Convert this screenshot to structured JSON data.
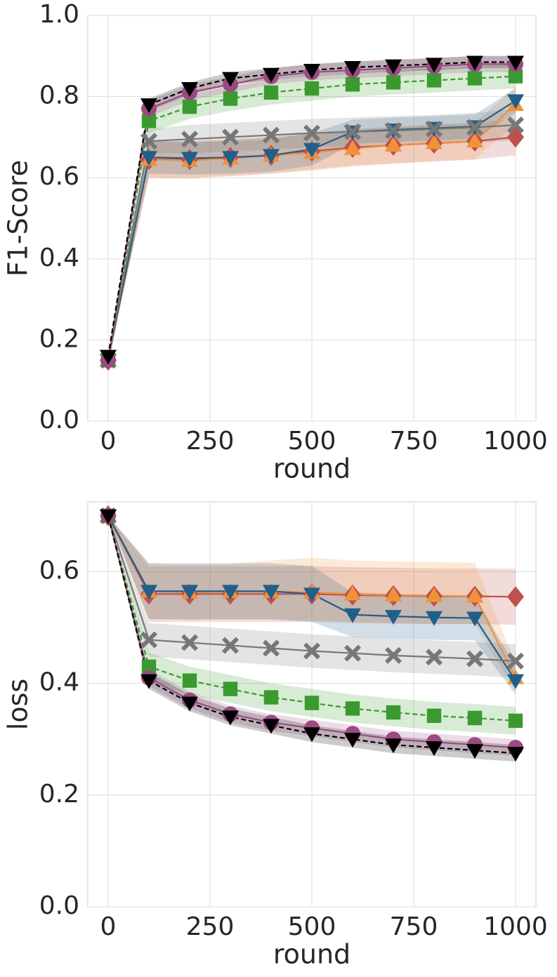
{
  "chart_data": [
    {
      "type": "line",
      "xlabel": "round",
      "ylabel": "F1-Score",
      "x": [
        0,
        100,
        200,
        300,
        400,
        500,
        600,
        700,
        800,
        900,
        1000
      ],
      "xlim": [
        -50,
        1050
      ],
      "ylim": [
        0,
        1.0
      ],
      "xticks": [
        0,
        250,
        500,
        750,
        1000
      ],
      "yticks": [
        {
          "value": 0,
          "label": "0.0"
        },
        0.2,
        0.4,
        0.6,
        0.8,
        {
          "value": 1.0,
          "label": "1.0"
        }
      ],
      "grid": true,
      "series": [
        {
          "color": "#c0504d",
          "marker": "D",
          "linestyle": "solid",
          "values": [
            0.15,
            0.645,
            0.645,
            0.65,
            0.655,
            0.665,
            0.675,
            0.68,
            0.685,
            0.69,
            0.7
          ],
          "lower": [
            0.15,
            0.6,
            0.6,
            0.605,
            0.61,
            0.62,
            0.63,
            0.635,
            0.64,
            0.645,
            0.655
          ],
          "upper": [
            0.15,
            0.69,
            0.69,
            0.695,
            0.7,
            0.71,
            0.72,
            0.725,
            0.73,
            0.735,
            0.745
          ]
        },
        {
          "color": "#f0923a",
          "marker": "^",
          "linestyle": "solid",
          "values": [
            0.15,
            0.645,
            0.642,
            0.648,
            0.655,
            0.662,
            0.672,
            0.68,
            0.686,
            0.69,
            0.78
          ],
          "lower": [
            0.15,
            0.6,
            0.597,
            0.603,
            0.61,
            0.617,
            0.627,
            0.635,
            0.641,
            0.645,
            0.735
          ],
          "upper": [
            0.15,
            0.69,
            0.687,
            0.693,
            0.7,
            0.707,
            0.717,
            0.725,
            0.731,
            0.735,
            0.825
          ]
        },
        {
          "color": "#1f5f8b",
          "marker": "v",
          "linestyle": "solid",
          "values": [
            0.15,
            0.65,
            0.648,
            0.65,
            0.655,
            0.67,
            0.713,
            0.718,
            0.722,
            0.726,
            0.79
          ],
          "lower": [
            0.15,
            0.61,
            0.608,
            0.61,
            0.615,
            0.63,
            0.683,
            0.688,
            0.692,
            0.696,
            0.76
          ],
          "upper": [
            0.15,
            0.69,
            0.688,
            0.69,
            0.695,
            0.71,
            0.743,
            0.748,
            0.752,
            0.756,
            0.82
          ]
        },
        {
          "color": "#777777",
          "marker": "X",
          "linestyle": "solid",
          "values": [
            0.15,
            0.69,
            0.695,
            0.7,
            0.705,
            0.71,
            0.713,
            0.716,
            0.72,
            0.724,
            0.73
          ],
          "lower": [
            0.15,
            0.66,
            0.66,
            0.665,
            0.67,
            0.675,
            0.678,
            0.68,
            0.685,
            0.688,
            0.69
          ],
          "upper": [
            0.15,
            0.72,
            0.73,
            0.735,
            0.74,
            0.745,
            0.748,
            0.752,
            0.755,
            0.76,
            0.77
          ]
        },
        {
          "color": "#3a9a2f",
          "marker": "s",
          "linestyle": "dashed",
          "values": [
            0.15,
            0.74,
            0.775,
            0.795,
            0.81,
            0.82,
            0.83,
            0.835,
            0.84,
            0.845,
            0.85
          ],
          "lower": [
            0.15,
            0.71,
            0.745,
            0.765,
            0.78,
            0.79,
            0.8,
            0.805,
            0.81,
            0.815,
            0.82
          ],
          "upper": [
            0.15,
            0.77,
            0.805,
            0.825,
            0.84,
            0.85,
            0.86,
            0.865,
            0.87,
            0.875,
            0.88
          ]
        },
        {
          "color": "#9b4a82",
          "marker": "o",
          "linestyle": "solid",
          "values": [
            0.15,
            0.77,
            0.81,
            0.83,
            0.85,
            0.86,
            0.865,
            0.87,
            0.875,
            0.88,
            0.88
          ],
          "lower": [
            0.15,
            0.75,
            0.79,
            0.81,
            0.83,
            0.84,
            0.845,
            0.85,
            0.855,
            0.86,
            0.86
          ],
          "upper": [
            0.15,
            0.79,
            0.83,
            0.85,
            0.87,
            0.88,
            0.885,
            0.89,
            0.895,
            0.9,
            0.9
          ]
        },
        {
          "color": "#000000",
          "marker": "v",
          "linestyle": "dashed",
          "values": [
            0.16,
            0.78,
            0.82,
            0.845,
            0.855,
            0.865,
            0.872,
            0.876,
            0.88,
            0.885,
            0.885
          ],
          "lower": [
            0.16,
            0.765,
            0.805,
            0.83,
            0.84,
            0.85,
            0.857,
            0.861,
            0.865,
            0.87,
            0.87
          ],
          "upper": [
            0.16,
            0.795,
            0.835,
            0.86,
            0.87,
            0.88,
            0.887,
            0.891,
            0.895,
            0.9,
            0.9
          ]
        }
      ]
    },
    {
      "type": "line",
      "xlabel": "round",
      "ylabel": "loss",
      "x": [
        0,
        100,
        200,
        300,
        400,
        500,
        600,
        700,
        800,
        900,
        1000
      ],
      "xlim": [
        -50,
        1050
      ],
      "ylim": [
        0,
        0.725
      ],
      "xticks": [
        0,
        250,
        500,
        750,
        1000
      ],
      "yticks": [
        {
          "value": 0,
          "label": "0.0"
        },
        0.2,
        0.4,
        0.6
      ],
      "grid": true,
      "series": [
        {
          "color": "#c0504d",
          "marker": "D",
          "linestyle": "solid",
          "values": [
            0.7,
            0.56,
            0.56,
            0.56,
            0.56,
            0.56,
            0.558,
            0.557,
            0.556,
            0.556,
            0.555
          ],
          "lower": [
            0.7,
            0.51,
            0.51,
            0.51,
            0.51,
            0.51,
            0.508,
            0.507,
            0.506,
            0.506,
            0.505
          ],
          "upper": [
            0.7,
            0.61,
            0.61,
            0.61,
            0.61,
            0.61,
            0.608,
            0.607,
            0.606,
            0.606,
            0.605
          ]
        },
        {
          "color": "#f0923a",
          "marker": "^",
          "linestyle": "solid",
          "values": [
            0.7,
            0.565,
            0.563,
            0.564,
            0.564,
            0.563,
            0.56,
            0.558,
            0.557,
            0.556,
            0.41
          ],
          "lower": [
            0.7,
            0.515,
            0.513,
            0.514,
            0.514,
            0.513,
            0.51,
            0.508,
            0.507,
            0.506,
            0.385
          ],
          "upper": [
            0.7,
            0.615,
            0.613,
            0.614,
            0.62,
            0.625,
            0.62,
            0.618,
            0.617,
            0.616,
            0.435
          ]
        },
        {
          "color": "#1f5f8b",
          "marker": "v",
          "linestyle": "solid",
          "values": [
            0.7,
            0.565,
            0.565,
            0.565,
            0.565,
            0.56,
            0.523,
            0.52,
            0.518,
            0.517,
            0.405
          ],
          "lower": [
            0.7,
            0.515,
            0.515,
            0.515,
            0.515,
            0.51,
            0.483,
            0.48,
            0.478,
            0.477,
            0.38
          ],
          "upper": [
            0.7,
            0.615,
            0.615,
            0.615,
            0.615,
            0.61,
            0.563,
            0.56,
            0.558,
            0.557,
            0.43
          ]
        },
        {
          "color": "#777777",
          "marker": "X",
          "linestyle": "solid",
          "values": [
            0.7,
            0.478,
            0.473,
            0.468,
            0.463,
            0.458,
            0.454,
            0.45,
            0.447,
            0.444,
            0.44
          ],
          "lower": [
            0.7,
            0.448,
            0.443,
            0.438,
            0.433,
            0.428,
            0.424,
            0.42,
            0.417,
            0.414,
            0.41
          ],
          "upper": [
            0.7,
            0.508,
            0.503,
            0.498,
            0.493,
            0.488,
            0.484,
            0.48,
            0.477,
            0.474,
            0.47
          ]
        },
        {
          "color": "#3a9a2f",
          "marker": "s",
          "linestyle": "dashed",
          "values": [
            0.7,
            0.43,
            0.405,
            0.39,
            0.375,
            0.365,
            0.355,
            0.348,
            0.342,
            0.338,
            0.333
          ],
          "lower": [
            0.7,
            0.405,
            0.38,
            0.365,
            0.35,
            0.34,
            0.33,
            0.323,
            0.317,
            0.313,
            0.308
          ],
          "upper": [
            0.7,
            0.455,
            0.43,
            0.415,
            0.4,
            0.39,
            0.38,
            0.373,
            0.367,
            0.363,
            0.358
          ]
        },
        {
          "color": "#9b4a82",
          "marker": "o",
          "linestyle": "solid",
          "values": [
            0.7,
            0.41,
            0.37,
            0.345,
            0.33,
            0.32,
            0.31,
            0.3,
            0.295,
            0.29,
            0.285
          ],
          "lower": [
            0.7,
            0.395,
            0.355,
            0.33,
            0.315,
            0.305,
            0.295,
            0.285,
            0.28,
            0.275,
            0.27
          ],
          "upper": [
            0.7,
            0.425,
            0.385,
            0.36,
            0.345,
            0.335,
            0.325,
            0.315,
            0.31,
            0.305,
            0.3
          ]
        },
        {
          "color": "#000000",
          "marker": "v",
          "linestyle": "dashed",
          "values": [
            0.7,
            0.405,
            0.365,
            0.34,
            0.325,
            0.31,
            0.3,
            0.29,
            0.285,
            0.28,
            0.275
          ],
          "lower": [
            0.7,
            0.39,
            0.35,
            0.325,
            0.31,
            0.295,
            0.285,
            0.275,
            0.27,
            0.265,
            0.26
          ],
          "upper": [
            0.7,
            0.42,
            0.38,
            0.355,
            0.34,
            0.325,
            0.315,
            0.305,
            0.3,
            0.295,
            0.29
          ]
        }
      ]
    }
  ]
}
